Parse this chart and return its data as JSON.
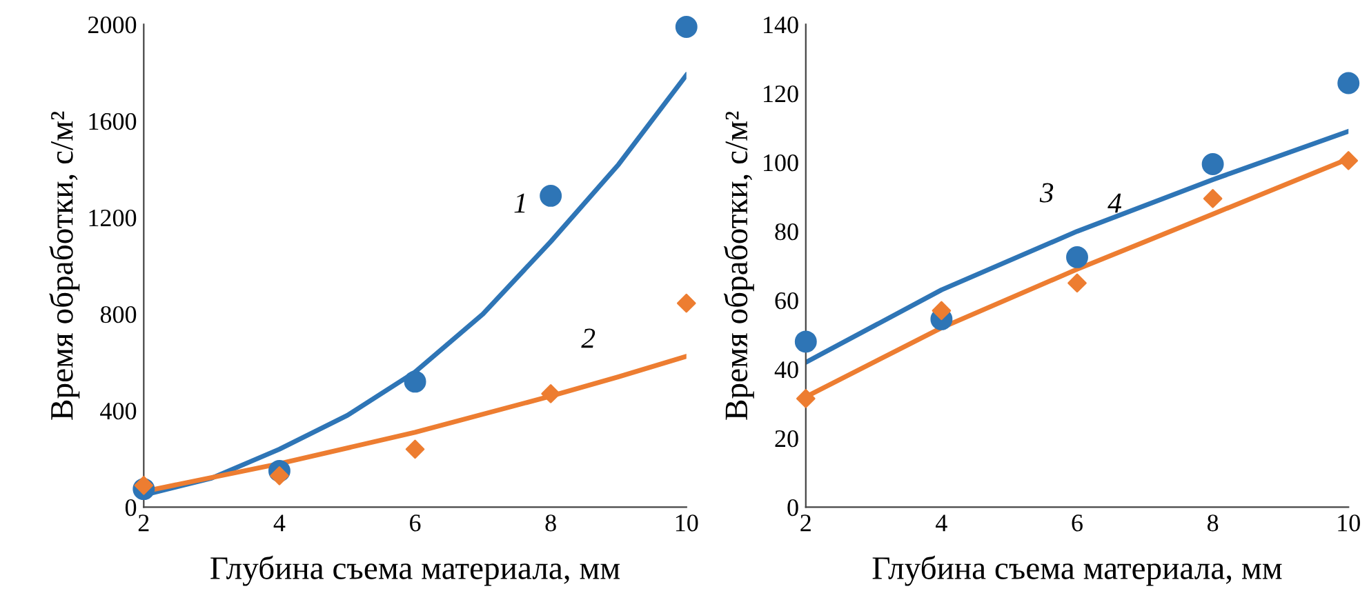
{
  "chart_data": [
    {
      "type": "scatter",
      "xlabel": "Глубина съема материала, мм",
      "ylabel": "Время обработки, с/м²",
      "xlim": [
        2,
        10
      ],
      "xticks": [
        2,
        4,
        6,
        8,
        10
      ],
      "ylim": [
        0,
        2000
      ],
      "yticks": [
        0,
        400,
        800,
        1200,
        1600,
        2000
      ],
      "grid": false,
      "legend": false,
      "series": [
        {
          "color": "#2e75b6",
          "marker": "circle",
          "x": [
            2,
            4,
            6,
            8,
            10
          ],
          "values": [
            75,
            150,
            520,
            1290,
            1990
          ]
        },
        {
          "color": "#ed7d31",
          "marker": "diamond",
          "x": [
            2,
            4,
            6,
            8,
            10
          ],
          "values": [
            90,
            130,
            240,
            470,
            845
          ]
        },
        {
          "type": "line",
          "color": "#2e75b6",
          "marker": "none",
          "x": [
            2,
            3,
            4,
            5,
            6,
            7,
            8,
            9,
            10
          ],
          "values": [
            50,
            120,
            240,
            380,
            560,
            800,
            1100,
            1420,
            1790
          ]
        },
        {
          "type": "line",
          "color": "#ed7d31",
          "marker": "none",
          "x": [
            2,
            4,
            6,
            8,
            9,
            10
          ],
          "values": [
            65,
            180,
            310,
            460,
            540,
            625
          ]
        }
      ],
      "annotations": [
        {
          "text": "1",
          "x": 8,
          "y": 1100
        },
        {
          "text": "2",
          "x": 9,
          "y": 540
        }
      ]
    },
    {
      "type": "scatter",
      "xlabel": "Глубина съема материала, мм",
      "ylabel": "Время обработки, с/м²",
      "xlim": [
        2,
        10
      ],
      "xticks": [
        2,
        4,
        6,
        8,
        10
      ],
      "ylim": [
        0,
        140
      ],
      "yticks": [
        0,
        20,
        40,
        60,
        80,
        100,
        120,
        140
      ],
      "grid": false,
      "legend": false,
      "series": [
        {
          "color": "#2e75b6",
          "marker": "circle",
          "x": [
            2,
            4,
            6,
            8,
            10
          ],
          "values": [
            48,
            54.5,
            72.5,
            99.5,
            123
          ]
        },
        {
          "color": "#ed7d31",
          "marker": "diamond",
          "x": [
            2,
            4,
            6,
            8,
            10
          ],
          "values": [
            31.5,
            57,
            65,
            89.5,
            100.5
          ]
        },
        {
          "type": "line",
          "color": "#2e75b6",
          "marker": "none",
          "x": [
            2,
            4,
            6,
            8,
            10
          ],
          "values": [
            42,
            63,
            80,
            95,
            109
          ]
        },
        {
          "type": "line",
          "color": "#ed7d31",
          "marker": "none",
          "x": [
            2,
            4,
            6,
            7,
            8,
            10
          ],
          "values": [
            32,
            52,
            69,
            77,
            85,
            101
          ]
        }
      ],
      "annotations": [
        {
          "text": "3",
          "x": 6,
          "y": 80
        },
        {
          "text": "4",
          "x": 7,
          "y": 77
        }
      ]
    }
  ]
}
